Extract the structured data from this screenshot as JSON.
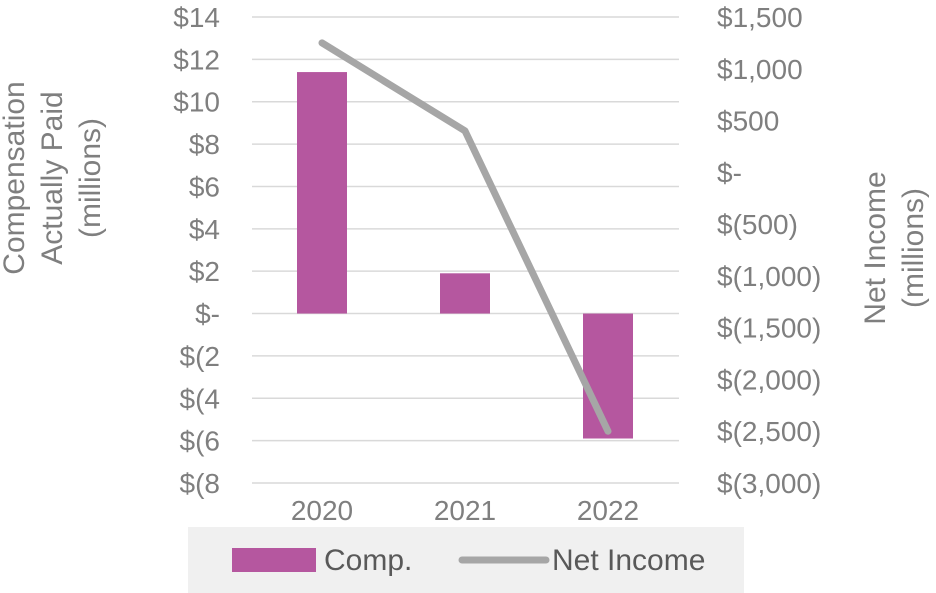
{
  "chart_data": {
    "type": "bar+line",
    "categories": [
      "2020",
      "2021",
      "2022"
    ],
    "series": [
      {
        "name": "Comp.",
        "type": "bar",
        "axis": "left",
        "color": "#b5579f",
        "values": [
          11.4,
          1.9,
          -5.9
        ]
      },
      {
        "name": "Net Income",
        "type": "line",
        "axis": "right",
        "color": "#a6a6a6",
        "values": [
          1250,
          400,
          -2500
        ]
      }
    ],
    "y_left": {
      "label_lines": [
        "Compensation",
        "Actually Paid",
        "(millions)"
      ],
      "ylim": [
        -8,
        14
      ],
      "ticks": [
        14,
        12,
        10,
        8,
        6,
        4,
        2,
        0,
        -2,
        -4,
        -6,
        -8
      ],
      "tick_labels": [
        "$14",
        "$12",
        "$10",
        "$8",
        "$6",
        "$4",
        "$2",
        "$-",
        "$(2",
        "$(4",
        "$(6",
        "$(8"
      ]
    },
    "y_right": {
      "label_lines": [
        "Net Income",
        "(millions)"
      ],
      "ylim": [
        -3000,
        1500
      ],
      "ticks": [
        1500,
        1000,
        500,
        0,
        -500,
        -1000,
        -1500,
        -2000,
        -2500,
        -3000
      ],
      "tick_labels": [
        "$1,500",
        "$1,000",
        "$500",
        "$-",
        "$(500)",
        "$(1,000)",
        "$(1,500)",
        "$(2,000)",
        "$(2,500)",
        "$(3,000)"
      ]
    },
    "grid": true,
    "legend": {
      "placement": "bottom",
      "background": "#f0f0f0",
      "items": [
        {
          "label": "Comp.",
          "swatch": "bar",
          "color": "#b5579f"
        },
        {
          "label": "Net Income",
          "swatch": "line",
          "color": "#a6a6a6"
        }
      ]
    }
  }
}
